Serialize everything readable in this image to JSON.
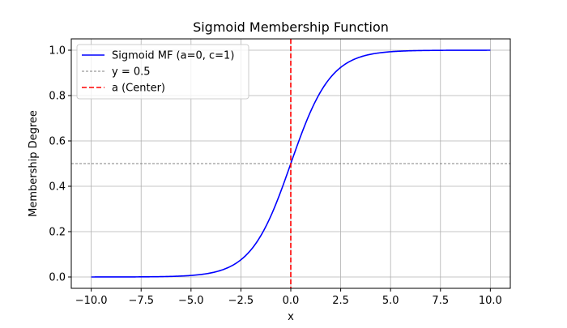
{
  "chart_data": {
    "type": "line",
    "title": "Sigmoid Membership Function",
    "xlabel": "x",
    "ylabel": "Membership Degree",
    "xlim": [
      -11,
      11
    ],
    "ylim": [
      -0.05,
      1.05
    ],
    "grid": true,
    "legend_position": "top-left",
    "function": "1 / (1 + exp(-c * (x - a)))",
    "params": {
      "a": 0,
      "c": 1
    },
    "x_range": [
      -10,
      10
    ],
    "series": [
      {
        "name": "Sigmoid MF (a=0, c=1)",
        "color": "#0000ff",
        "style": "solid"
      },
      {
        "name": "y = 0.5",
        "color": "#808080",
        "style": "dashed-thin",
        "y": 0.5
      },
      {
        "name": "a (Center)",
        "color": "#ff0000",
        "style": "dashed",
        "x": 0
      }
    ],
    "x_ticks": [
      -10,
      -7.5,
      -5,
      -2.5,
      0,
      2.5,
      5,
      7.5,
      10
    ],
    "x_tick_labels": [
      "−10.0",
      "−7.5",
      "−5.0",
      "−2.5",
      "0.0",
      "2.5",
      "5.0",
      "7.5",
      "10.0"
    ],
    "y_ticks": [
      0,
      0.2,
      0.4,
      0.6,
      0.8,
      1.0
    ],
    "y_tick_labels": [
      "0.0",
      "0.2",
      "0.4",
      "0.6",
      "0.8",
      "1.0"
    ]
  }
}
